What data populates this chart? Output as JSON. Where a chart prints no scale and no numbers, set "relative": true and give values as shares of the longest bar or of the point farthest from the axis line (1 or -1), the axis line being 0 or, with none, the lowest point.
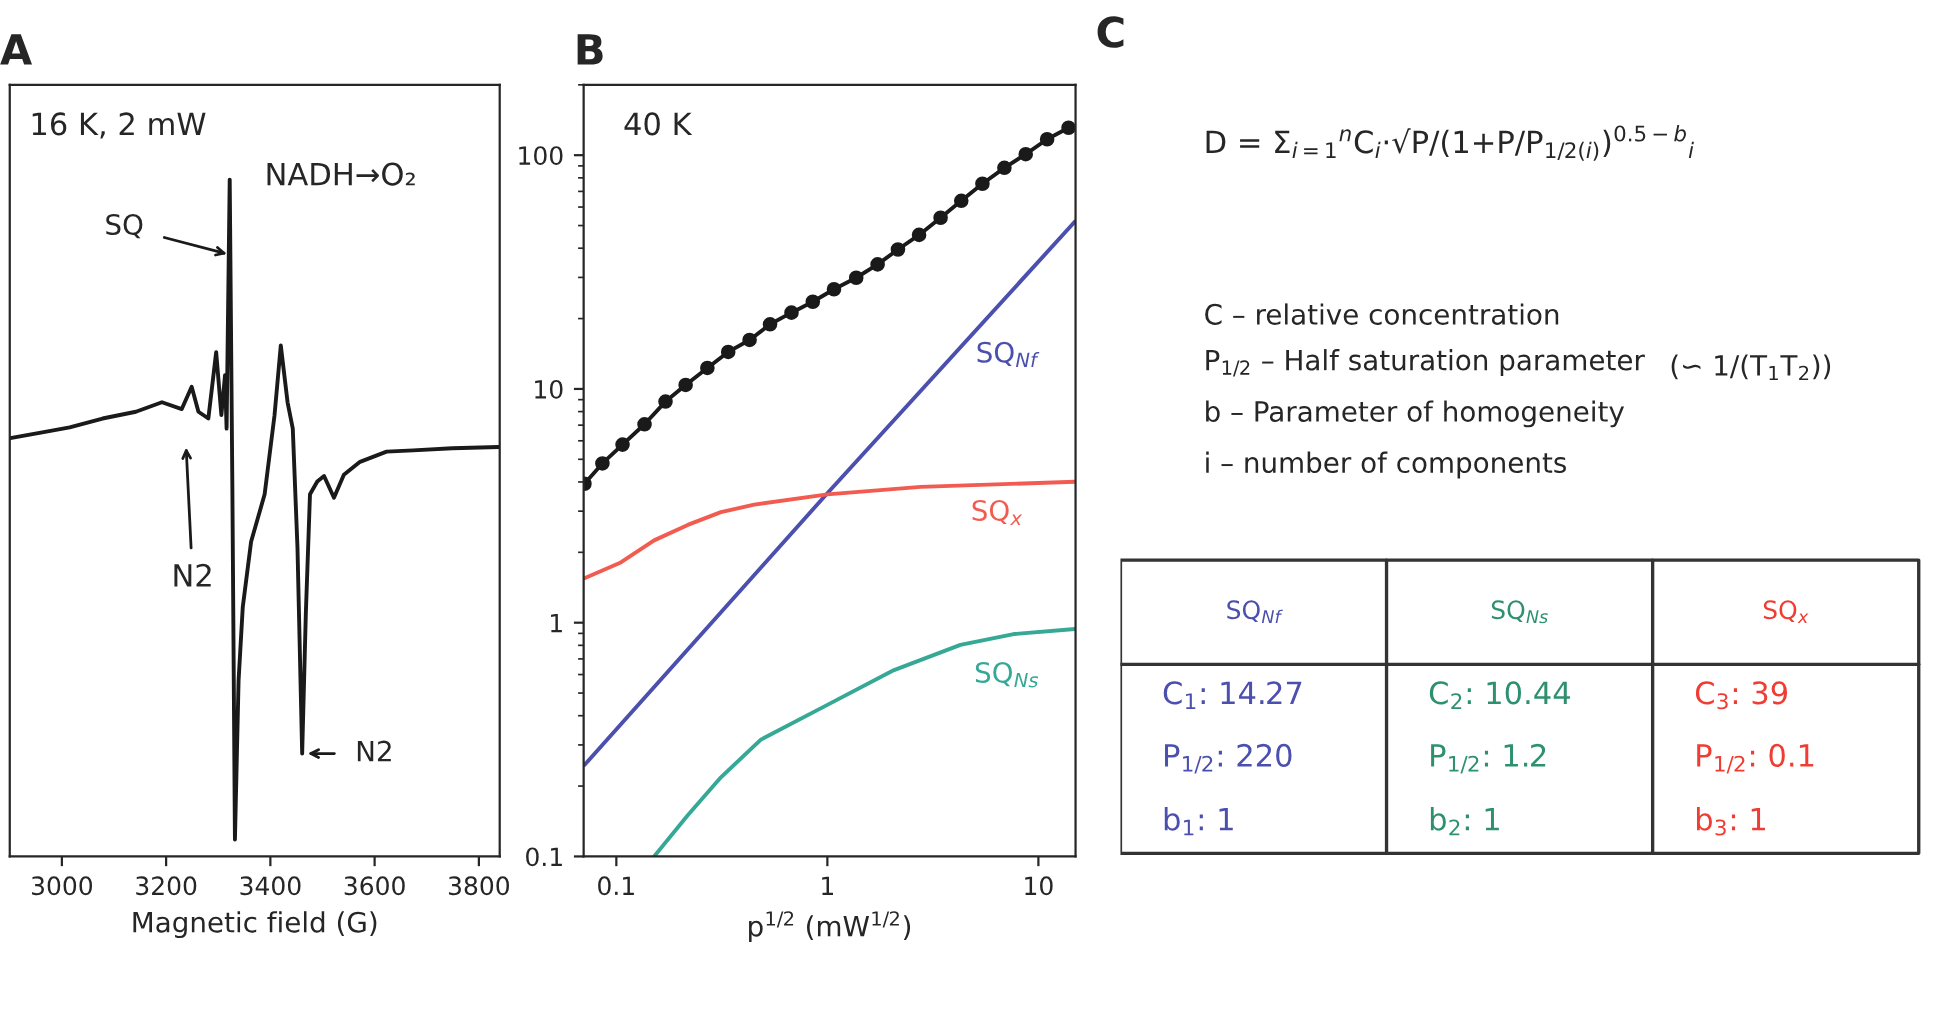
{
  "chart_data": [
    {
      "type": "line",
      "title": "A",
      "xlabel": "Magnetic field (G)",
      "relative": true,
      "xlim": [
        2900,
        3840
      ],
      "xticks": [
        3000,
        3200,
        3400,
        3600,
        3800
      ],
      "annotations": [
        "16 K, 2 mW",
        "NADH→O₂",
        "N2",
        {
          "text": "SQ",
          "x": 3322,
          "y": 0.889
        },
        {
          "text": "N2",
          "x": 3461,
          "y": 0.152
        }
      ],
      "series": [
        {
          "color": "#1a1a1a",
          "x": [
            2901,
            2965,
            3015,
            3078,
            3142,
            3192,
            3230,
            3249,
            3262,
            3281,
            3296,
            3306,
            3313,
            3316,
            3322,
            3327,
            3332,
            3339,
            3347,
            3363,
            3389,
            3408,
            3420,
            3433,
            3443,
            3452,
            3461,
            3468,
            3476,
            3490,
            3503,
            3522,
            3541,
            3572,
            3623,
            3674,
            3749,
            3838
          ],
          "values": [
            0.618,
            0.627,
            0.634,
            0.647,
            0.657,
            0.671,
            0.661,
            0.694,
            0.657,
            0.647,
            0.745,
            0.652,
            0.711,
            0.632,
            1.0,
            0.554,
            0.025,
            0.26,
            0.368,
            0.465,
            0.535,
            0.652,
            0.755,
            0.671,
            0.632,
            0.456,
            0.152,
            0.358,
            0.535,
            0.554,
            0.562,
            0.53,
            0.564,
            0.583,
            0.598,
            0.6,
            0.603,
            0.605
          ]
        }
      ]
    },
    {
      "type": "line",
      "title": "B",
      "xlabel": "p$^{1/2}$ (mW$^{1/2}$)",
      "log": "xy",
      "xlim": [
        0.07,
        15
      ],
      "xticks": [
        0.1,
        1,
        10
      ],
      "ylim": [
        0.1,
        200
      ],
      "yticks": [
        0.1,
        1,
        10,
        100
      ],
      "annotations": [
        "40 K"
      ],
      "series": [
        {
          "color": "#1a1a1a",
          "marker": "circle",
          "x": [
            0.0706,
            0.0859,
            0.107,
            0.136,
            0.171,
            0.213,
            0.27,
            0.339,
            0.428,
            0.535,
            0.676,
            0.853,
            1.075,
            1.37,
            1.73,
            2.16,
            2.72,
            3.44,
            4.31,
            5.43,
            6.9,
            8.71,
            11.0,
            13.9
          ],
          "values": [
            3.93,
            4.8,
            5.78,
            7.06,
            8.83,
            10.4,
            12.3,
            14.4,
            16.2,
            18.9,
            21.2,
            23.6,
            26.7,
            29.9,
            34.1,
            39.5,
            45.6,
            54.0,
            63.8,
            75.5,
            88.3,
            101,
            117,
            131
          ]
        },
        {
          "name": "SQ$_{Nf}$",
          "color": "#4b4fae",
          "x": [
            0.0706,
            1,
            14.9
          ],
          "values": [
            0.246,
            3.58,
            52.0
          ]
        },
        {
          "name": "SQ$_{x}$",
          "color": "#f25b50",
          "x": [
            0.0706,
            0.105,
            0.151,
            0.218,
            0.313,
            0.45,
            1,
            2.77,
            14.9
          ],
          "values": [
            1.55,
            1.81,
            2.25,
            2.62,
            2.97,
            3.2,
            3.54,
            3.81,
            4.01
          ]
        },
        {
          "name": "SQ$_{Ns}$",
          "color": "#35a896",
          "x": [
            0.151,
            0.218,
            0.313,
            0.484,
            1,
            2.07,
            4.27,
            7.64,
            14.9
          ],
          "values": [
            0.1,
            0.15,
            0.218,
            0.316,
            0.445,
            0.627,
            0.804,
            0.894,
            0.94
          ]
        }
      ]
    },
    {
      "type": "other",
      "title": "C",
      "annotations": [
        "D = Σ$_{i=1}$$^{n}$C$_{i}$·√P/(1+P/P$_{1/2(i)}$)$^{0.5−b}$$_{i}$",
        "C – relative concentration",
        "P$_{1/2}$ – Half saturation parameter",
        "(∽ 1/(T$_{1}$T$_{2}$))",
        "b – Parameter of homogeneity",
        "i – number of components"
      ],
      "categories": [
        "SQ$_{Nf}$",
        "SQ$_{Ns}$",
        "SQ$_{x}$"
      ],
      "colors": [
        "#4b4fae",
        "#2e9070",
        "#f03c32"
      ],
      "cell_labels": [
        [
          "C$_{1}$: 14.27",
          "C$_{2}$: 10.44",
          "C$_{3}$: 39"
        ],
        [
          "P$_{1/2}$: 220",
          "P$_{1/2}$: 1.2",
          "P$_{1/2}$: 0.1"
        ],
        [
          "b$_{1}$: 1",
          "b$_{2}$: 1",
          "b$_{3}$: 1"
        ]
      ]
    }
  ]
}
